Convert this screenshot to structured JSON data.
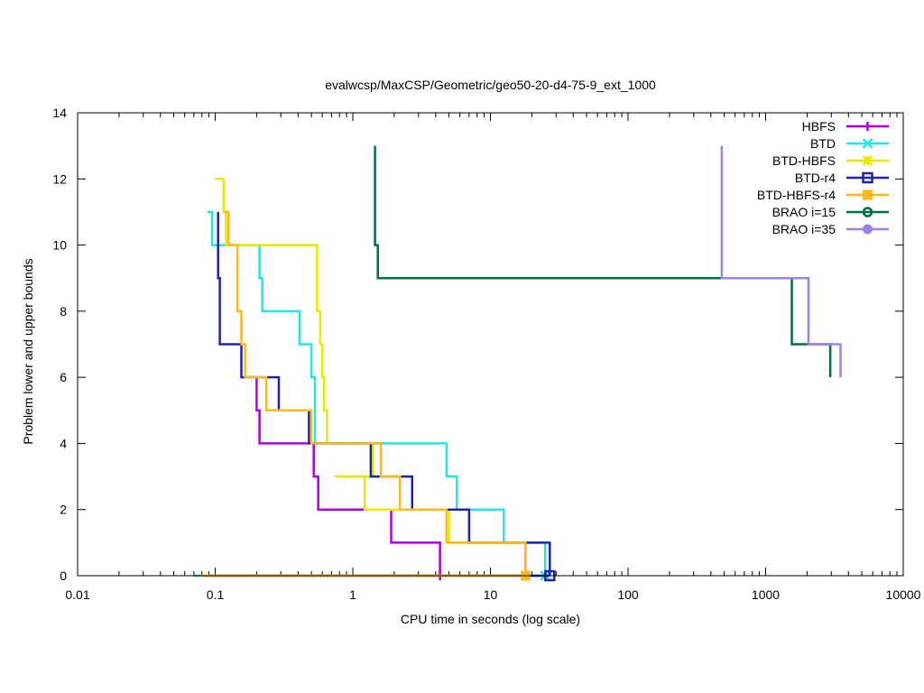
{
  "chart_data": {
    "type": "line",
    "title": "evalwcsp/MaxCSP/Geometric/geo50-20-d4-75-9_ext_1000",
    "xlabel": "CPU time in seconds (log scale)",
    "ylabel": "Problem lower and upper bounds",
    "xscale": "log",
    "xlim": [
      0.01,
      10000
    ],
    "ylim": [
      0,
      14
    ],
    "x_ticks": [
      0.01,
      0.1,
      1,
      10,
      100,
      1000,
      10000
    ],
    "x_tick_labels": [
      "0.01",
      "0.1",
      "1",
      "10",
      "100",
      "1000",
      "10000"
    ],
    "y_ticks": [
      0,
      2,
      4,
      6,
      8,
      10,
      12,
      14
    ],
    "y_tick_labels": [
      "0",
      "2",
      "4",
      "6",
      "8",
      "10",
      "12",
      "14"
    ],
    "legend_position": "top-right",
    "series": [
      {
        "name": "HBFS",
        "color": "#b000e0",
        "marker": "plus",
        "upper": [
          [
            0.16,
            6
          ],
          [
            0.2,
            6
          ],
          [
            0.2,
            5
          ],
          [
            0.21,
            5
          ],
          [
            0.21,
            4
          ],
          [
            0.52,
            4
          ],
          [
            0.52,
            3
          ],
          [
            0.56,
            3
          ],
          [
            0.56,
            2
          ],
          [
            1.9,
            2
          ],
          [
            1.9,
            1
          ],
          [
            4.3,
            1
          ],
          [
            4.3,
            0
          ]
        ],
        "lower": [
          [
            0.09,
            0
          ],
          [
            4.3,
            0
          ]
        ],
        "end_marker": [
          4.3,
          0
        ]
      },
      {
        "name": "BTD",
        "color": "#22e5e5",
        "marker": "cross",
        "upper": [
          [
            0.088,
            11
          ],
          [
            0.095,
            11
          ],
          [
            0.095,
            10
          ],
          [
            0.21,
            10
          ],
          [
            0.21,
            9
          ],
          [
            0.22,
            9
          ],
          [
            0.22,
            8
          ],
          [
            0.41,
            8
          ],
          [
            0.41,
            7
          ],
          [
            0.5,
            7
          ],
          [
            0.5,
            6
          ],
          [
            0.53,
            6
          ],
          [
            0.53,
            4
          ],
          [
            4.8,
            4
          ],
          [
            4.8,
            3
          ],
          [
            5.7,
            3
          ],
          [
            5.7,
            2
          ],
          [
            12.5,
            2
          ],
          [
            12.5,
            1
          ],
          [
            25,
            1
          ],
          [
            25,
            0
          ]
        ],
        "lower": [
          [
            0.07,
            0
          ],
          [
            25,
            0
          ]
        ],
        "end_marker": [
          25,
          0
        ]
      },
      {
        "name": "BTD-HBFS",
        "color": "#e8e800",
        "marker": "star",
        "upper": [
          [
            0.1,
            12
          ],
          [
            0.115,
            12
          ],
          [
            0.115,
            11
          ],
          [
            0.12,
            11
          ],
          [
            0.12,
            10
          ],
          [
            0.55,
            10
          ],
          [
            0.55,
            8
          ],
          [
            0.58,
            8
          ],
          [
            0.58,
            7
          ],
          [
            0.6,
            7
          ],
          [
            0.6,
            6
          ],
          [
            0.62,
            6
          ],
          [
            0.62,
            5
          ],
          [
            0.65,
            5
          ],
          [
            0.65,
            4
          ],
          [
            1.4,
            4
          ],
          [
            1.4,
            3
          ],
          [
            0.74,
            3
          ],
          [
            0.74,
            3
          ],
          [
            1.22,
            3
          ],
          [
            1.22,
            2
          ],
          [
            5.0,
            2
          ],
          [
            5.0,
            1
          ],
          [
            18,
            1
          ],
          [
            18,
            0
          ]
        ],
        "lower": [
          [
            0.08,
            0
          ],
          [
            18,
            0
          ]
        ],
        "end_marker": [
          18,
          0
        ]
      },
      {
        "name": "BTD-r4",
        "color": "#1e22b0",
        "marker": "box",
        "upper": [
          [
            0.105,
            11
          ],
          [
            0.105,
            9
          ],
          [
            0.108,
            9
          ],
          [
            0.108,
            7
          ],
          [
            0.155,
            7
          ],
          [
            0.155,
            6
          ],
          [
            0.29,
            6
          ],
          [
            0.29,
            5
          ],
          [
            0.48,
            5
          ],
          [
            0.48,
            4
          ],
          [
            1.35,
            4
          ],
          [
            1.35,
            3
          ],
          [
            2.7,
            3
          ],
          [
            2.7,
            2
          ],
          [
            7.0,
            2
          ],
          [
            7.0,
            1
          ],
          [
            27,
            1
          ],
          [
            27,
            0
          ]
        ],
        "lower": [
          [
            0.09,
            0
          ],
          [
            27,
            0
          ]
        ],
        "end_marker": [
          27,
          0
        ]
      },
      {
        "name": "BTD-HBFS-r4",
        "color": "#ffb81c",
        "marker": "filledbox",
        "upper": [
          [
            0.115,
            11
          ],
          [
            0.125,
            11
          ],
          [
            0.125,
            10
          ],
          [
            0.145,
            10
          ],
          [
            0.145,
            8
          ],
          [
            0.155,
            8
          ],
          [
            0.155,
            7
          ],
          [
            0.165,
            7
          ],
          [
            0.165,
            6
          ],
          [
            0.235,
            6
          ],
          [
            0.235,
            5
          ],
          [
            0.5,
            5
          ],
          [
            0.5,
            4
          ],
          [
            1.6,
            4
          ],
          [
            1.6,
            3
          ],
          [
            2.2,
            3
          ],
          [
            2.2,
            2
          ],
          [
            4.8,
            2
          ],
          [
            4.8,
            1
          ],
          [
            18,
            1
          ],
          [
            18,
            0
          ]
        ],
        "lower": [
          [
            0.08,
            0
          ],
          [
            18,
            0
          ]
        ],
        "end_marker": [
          18,
          0
        ]
      },
      {
        "name": "BRAO i=15",
        "color": "#007040",
        "marker": "circle",
        "upper": [
          [
            1.45,
            13
          ],
          [
            1.45,
            10
          ],
          [
            1.52,
            10
          ],
          [
            1.52,
            9
          ],
          [
            1550,
            9
          ],
          [
            1550,
            7
          ],
          [
            2950,
            7
          ],
          [
            2950,
            6
          ]
        ],
        "lower": [],
        "end_marker": null
      },
      {
        "name": "BRAO i=35",
        "color": "#a080f0",
        "marker": "filledcircle",
        "upper": [
          [
            480,
            13
          ],
          [
            480,
            9
          ],
          [
            2050,
            9
          ],
          [
            2050,
            7
          ],
          [
            3500,
            7
          ],
          [
            3500,
            6
          ]
        ],
        "lower": [],
        "end_marker": null
      }
    ]
  }
}
